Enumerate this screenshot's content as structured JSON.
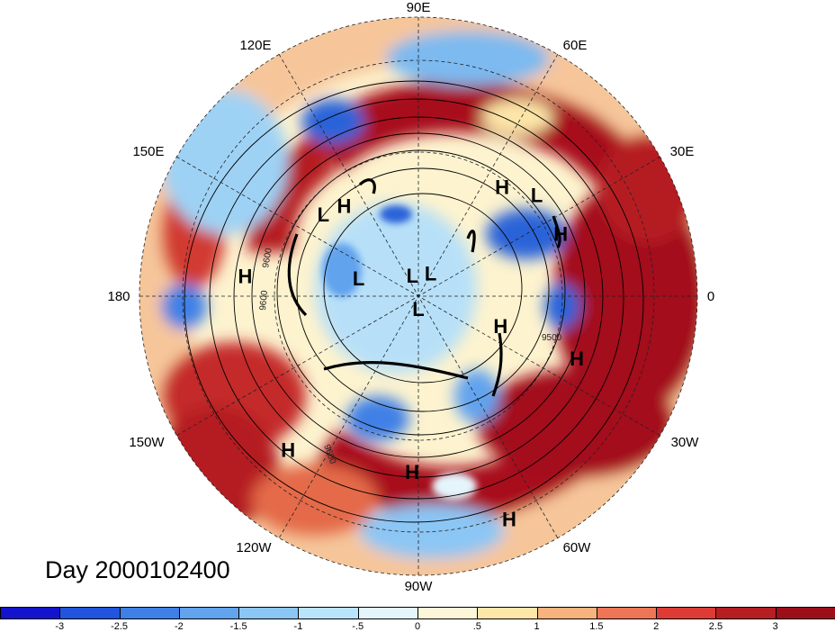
{
  "map": {
    "projection": "north-polar-stereographic",
    "longitude_labels": [
      "90E",
      "60E",
      "30E",
      "0",
      "30W",
      "60W",
      "90W",
      "120W",
      "150W",
      "180",
      "150E",
      "120E"
    ],
    "pressure_systems": [
      {
        "type": "H",
        "lon": 52,
        "lat": 38
      },
      {
        "type": "L",
        "lon": 40,
        "lat": 32
      },
      {
        "type": "H",
        "lon": 23,
        "lat": 32
      },
      {
        "type": "L",
        "lon": 140,
        "lat": 42
      },
      {
        "type": "H",
        "lon": 130,
        "lat": 45
      },
      {
        "type": "H",
        "lon": 174,
        "lat": 26
      },
      {
        "type": "L",
        "lon": 60,
        "lat": 80
      },
      {
        "type": "L",
        "lon": 108,
        "lat": 82
      },
      {
        "type": "L",
        "lon": 165,
        "lat": 65
      },
      {
        "type": "L",
        "lon": 270,
        "lat": 84
      },
      {
        "type": "H",
        "lon": 339,
        "lat": 55
      },
      {
        "type": "H",
        "lon": 338,
        "lat": 27
      },
      {
        "type": "H",
        "lon": 230,
        "lat": 18
      },
      {
        "type": "H",
        "lon": 268,
        "lat": 25
      },
      {
        "type": "H",
        "lon": 292,
        "lat": 8
      }
    ],
    "contour_labels": [
      "9600",
      "9600",
      "9500",
      "9600"
    ],
    "anomaly_levels": [
      -3,
      -2.5,
      -2,
      -1.5,
      -1,
      -0.5,
      0,
      0.5,
      1,
      1.5,
      2,
      2.5,
      3
    ]
  },
  "caption": {
    "day_label": "Day 2000102400"
  },
  "colorbar": {
    "ticks": [
      "-3",
      "-2.5",
      "-2",
      "-1.5",
      "-1",
      "-.5",
      "0",
      ".5",
      "1",
      "1.5",
      "2",
      "2.5",
      "3"
    ],
    "colors": [
      "#1414cc",
      "#2255dd",
      "#3f80e6",
      "#62a3ee",
      "#8cc6f5",
      "#b9e4fa",
      "#e4f5fc",
      "#fdf6d8",
      "#fde6a8",
      "#f7b27e",
      "#ee7556",
      "#dd3b35",
      "#b51e23",
      "#9c0e1a"
    ]
  }
}
